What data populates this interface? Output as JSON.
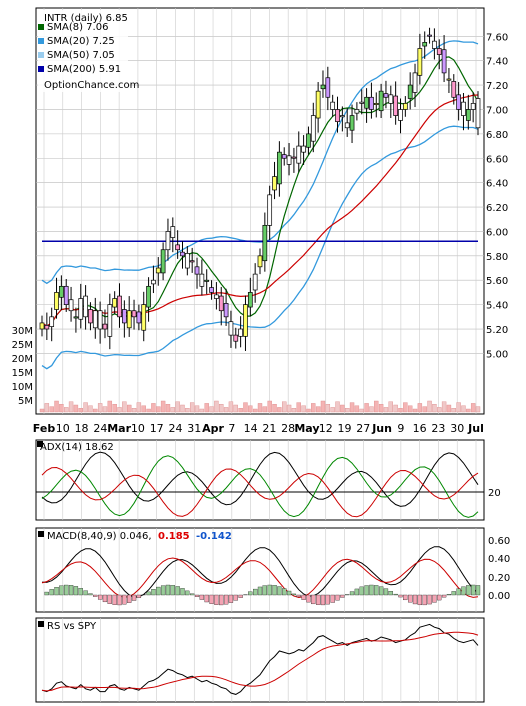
{
  "chart_data": {
    "type": "financial",
    "ticker_label": "INTR (daily) 6.85",
    "watermark": "OptionChance.com",
    "x_labels": [
      "Feb",
      "10",
      "18",
      "24",
      "Mar",
      "10",
      "17",
      "24",
      "31",
      "Apr",
      "7",
      "14",
      "21",
      "28",
      "May",
      "12",
      "19",
      "27",
      "Jun",
      "9",
      "16",
      "23",
      "30",
      "Jul"
    ],
    "x_labels_bold": [
      "Feb",
      "Mar",
      "Apr",
      "May",
      "Jun",
      "Jul"
    ],
    "panels": [
      {
        "id": "price",
        "type": "candlestick",
        "legend": [
          {
            "label": "SMA(8) 7.06",
            "color": "#006600"
          },
          {
            "label": "SMA(20) 7.25",
            "color": "#3399dd"
          },
          {
            "label": "SMA(50) 7.05",
            "color": "#99ccee"
          },
          {
            "label": "SMA(200) 5.91",
            "color": "#0000aa"
          }
        ],
        "price_ticks": [
          "7.60",
          "7.40",
          "7.20",
          "7.00",
          "6.80",
          "6.60",
          "6.40",
          "6.20",
          "6.00",
          "5.80",
          "5.60",
          "5.40",
          "5.20",
          "5.00"
        ],
        "volume_ticks": [
          "30M",
          "25M",
          "20M",
          "15M",
          "10M",
          "5M"
        ],
        "ylim": [
          4.7,
          7.75
        ],
        "close_series": [
          5.25,
          5.2,
          5.3,
          5.5,
          5.55,
          5.4,
          5.35,
          5.3,
          5.45,
          5.3,
          5.25,
          5.35,
          5.2,
          5.2,
          5.4,
          5.45,
          5.3,
          5.25,
          5.35,
          5.3,
          5.25,
          5.4,
          5.55,
          5.6,
          5.7,
          5.85,
          6.0,
          5.95,
          5.85,
          5.8,
          5.7,
          5.75,
          5.65,
          5.55,
          5.6,
          5.5,
          5.45,
          5.35,
          5.3,
          5.15,
          5.1,
          5.2,
          5.4,
          5.5,
          5.65,
          5.8,
          6.05,
          6.3,
          6.45,
          6.65,
          6.6,
          6.55,
          6.6,
          6.7,
          6.65,
          6.8,
          6.95,
          7.15,
          7.2,
          7.1,
          7.0,
          6.9,
          6.95,
          6.85,
          6.95,
          7.0,
          7.05,
          7.1,
          7.0,
          7.05,
          7.15,
          7.1,
          7.05,
          6.95,
          7.0,
          7.05,
          7.2,
          7.3,
          7.5,
          7.55,
          7.6,
          7.5,
          7.45,
          7.3,
          7.25,
          7.1,
          7.0,
          6.95,
          7.0,
          7.05,
          6.85
        ]
      },
      {
        "id": "adx",
        "type": "indicator",
        "label": "ADX(14) 18.62",
        "ticks": [
          "20"
        ]
      },
      {
        "id": "macd",
        "type": "indicator",
        "label": "MACD(8,40,9) 0.046,",
        "value_red": "0.185",
        "value_blue": "-0.142",
        "ticks": [
          "0.60",
          "0.40",
          "0.20",
          "0.00"
        ]
      },
      {
        "id": "rs",
        "type": "indicator",
        "label": "RS vs SPY"
      }
    ]
  }
}
